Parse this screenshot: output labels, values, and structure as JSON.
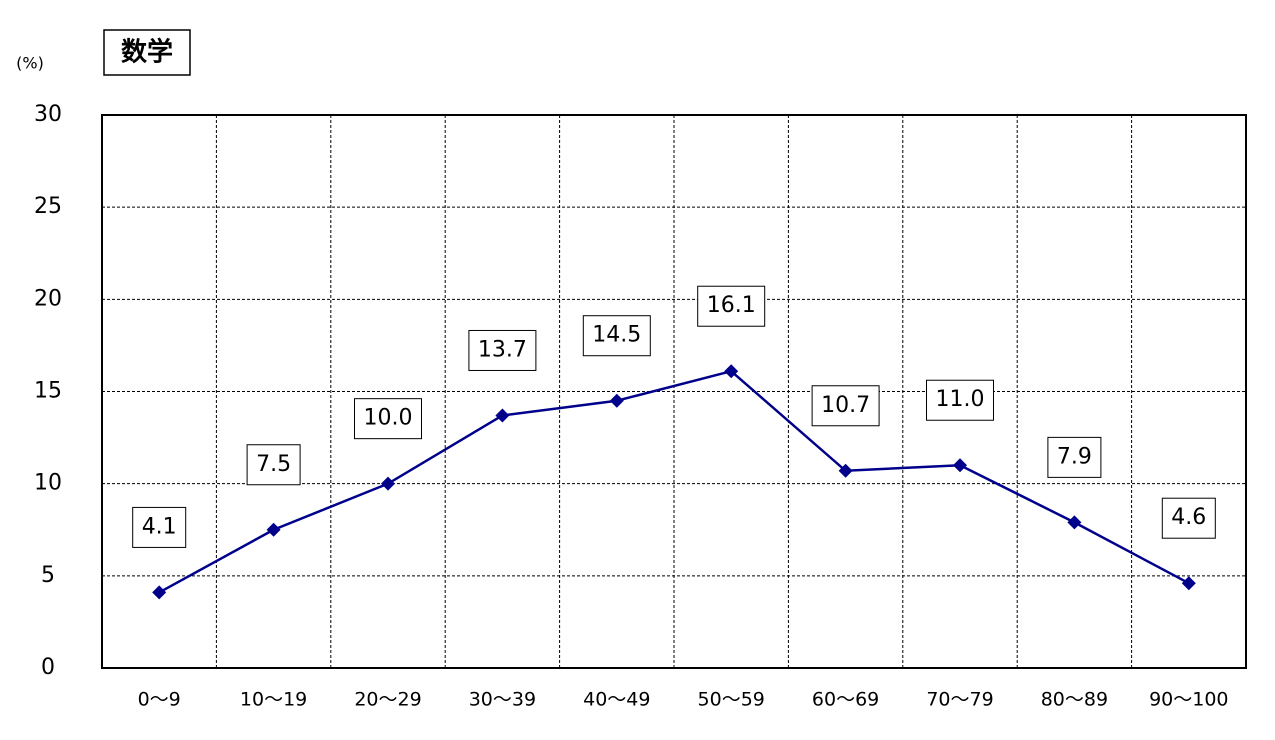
{
  "chart_data": {
    "type": "line",
    "title": "数学",
    "y_label": "(%)",
    "categories": [
      "0〜9",
      "10〜19",
      "20〜29",
      "30〜39",
      "40〜49",
      "50〜59",
      "60〜69",
      "70〜79",
      "80〜89",
      "90〜100"
    ],
    "values": [
      4.1,
      7.5,
      10.0,
      13.7,
      14.5,
      16.1,
      10.7,
      11.0,
      7.9,
      4.6
    ],
    "value_labels": [
      "4.1",
      "7.5",
      "10.0",
      "13.7",
      "14.5",
      "16.1",
      "10.7",
      "11.0",
      "7.9",
      "4.6"
    ],
    "color": "#00008b",
    "ylim": [
      0,
      30
    ],
    "yticks": [
      0,
      5,
      10,
      15,
      20,
      25,
      30
    ],
    "grid": true
  }
}
